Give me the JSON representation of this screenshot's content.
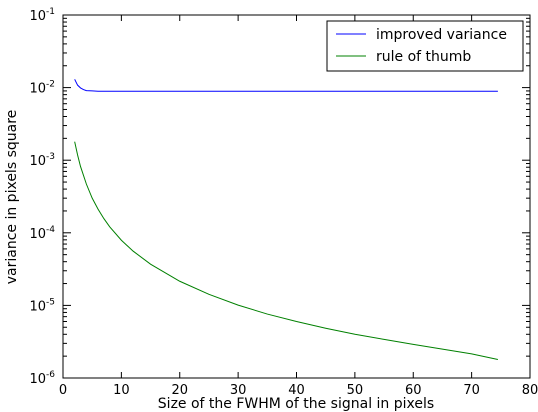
{
  "chart_data": {
    "type": "line",
    "title": "",
    "xlabel": "Size of the FWHM of the signal in pixels",
    "ylabel": "variance in pixels square",
    "xlim": [
      0,
      80
    ],
    "ylim": [
      1e-06,
      0.1
    ],
    "yscale": "log",
    "grid": false,
    "legend_position": "top-right",
    "x_ticks": [
      "0",
      "10",
      "20",
      "30",
      "40",
      "50",
      "60",
      "70",
      "80"
    ],
    "y_ticks": [
      {
        "base": "10",
        "exp": "-6",
        "value": 1e-06
      },
      {
        "base": "10",
        "exp": "-5",
        "value": 1e-05
      },
      {
        "base": "10",
        "exp": "-4",
        "value": 0.0001
      },
      {
        "base": "10",
        "exp": "-3",
        "value": 0.001
      },
      {
        "base": "10",
        "exp": "-2",
        "value": 0.01
      },
      {
        "base": "10",
        "exp": "-1",
        "value": 0.1
      }
    ],
    "series": [
      {
        "name": "improved variance",
        "color": "#0000ff",
        "x": [
          2,
          2.5,
          3,
          3.5,
          4,
          5,
          6,
          7,
          8,
          10,
          20,
          30,
          40,
          50,
          60,
          70,
          74.5
        ],
        "y": [
          0.013,
          0.0108,
          0.0099,
          0.0094,
          0.0091,
          0.009,
          0.0089,
          0.0089,
          0.0089,
          0.0089,
          0.0089,
          0.0089,
          0.0089,
          0.0089,
          0.0089,
          0.0089,
          0.0089
        ]
      },
      {
        "name": "rule of thumb",
        "color": "#008000",
        "x": [
          2,
          2.5,
          3,
          4,
          5,
          6,
          7,
          8,
          10,
          12,
          15,
          20,
          25,
          30,
          35,
          40,
          45,
          50,
          55,
          60,
          65,
          70,
          74.5
        ],
        "y": [
          0.0018,
          0.00118,
          0.00082,
          0.00047,
          0.0003,
          0.000212,
          0.000157,
          0.000121,
          7.9e-05,
          5.6e-05,
          3.7e-05,
          2.15e-05,
          1.42e-05,
          1.01e-05,
          7.6e-06,
          6e-06,
          4.85e-06,
          4e-06,
          3.4e-06,
          2.9e-06,
          2.5e-06,
          2.15e-06,
          1.8e-06
        ]
      }
    ]
  }
}
